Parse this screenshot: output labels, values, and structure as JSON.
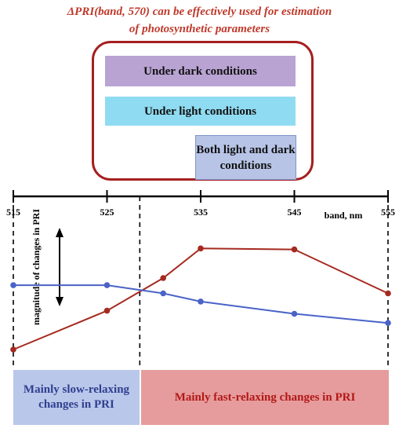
{
  "title": {
    "line1": "ΔPRI(band, 570) can be effectively used for estimation",
    "line2": "of photosynthetic parameters"
  },
  "boxes": {
    "dark": "Under dark conditions",
    "light": "Under light conditions",
    "both": "Both light and dark conditions"
  },
  "regions": {
    "left": "Mainly slow-relaxing changes in PRI",
    "right": "Mainly fast-relaxing changes in PRI"
  },
  "colors": {
    "red_series": "#a52a1f",
    "blue_series": "#4a63c8",
    "frame": "#a51f1f",
    "title": "#c0392b"
  },
  "chart_data": {
    "type": "line",
    "xlabel": "band, nm",
    "ylabel": "magnitude of changes in PRI",
    "xlim": [
      515,
      555
    ],
    "ylim": [
      0,
      1
    ],
    "x_ticks": [
      515,
      525,
      535,
      545,
      555
    ],
    "dividers": [
      515,
      528.5,
      555
    ],
    "series": [
      {
        "color": "#a52a1f",
        "x": [
          515,
          525,
          531,
          535,
          545,
          555
        ],
        "y": [
          0.0,
          0.38,
          0.7,
          0.99,
          0.98,
          0.55
        ]
      },
      {
        "color": "#4a63c8",
        "x": [
          515,
          525,
          531,
          535,
          545,
          555
        ],
        "y": [
          0.63,
          0.63,
          0.55,
          0.47,
          0.35,
          0.26
        ]
      }
    ]
  }
}
